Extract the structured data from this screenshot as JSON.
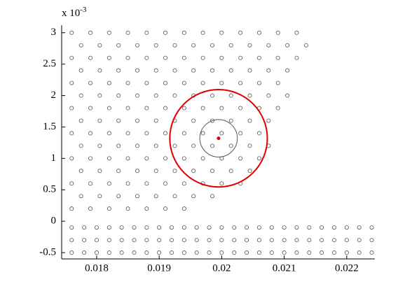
{
  "chart_data": {
    "type": "scatter",
    "marker": "circle",
    "marker_color": "#555555",
    "grid": false,
    "xlim": [
      0.01744,
      0.02245
    ],
    "xticks": [
      0.018,
      0.019,
      0.02,
      0.021,
      0.022
    ],
    "ylim": [
      -0.6,
      3.12
    ],
    "yticks": [
      -0.5,
      0,
      0.5,
      1,
      1.5,
      2,
      2.5,
      3
    ],
    "y_multiplier": {
      "base": "x 10",
      "exponent": "-3"
    },
    "x": [
      0.0176,
      0.0179,
      0.0182,
      0.0185,
      0.0188,
      0.0191,
      0.0194,
      0.0197,
      0.02,
      0.0203,
      0.0206,
      0.0209,
      0.0212,
      0.01775,
      0.01805,
      0.01835,
      0.01865,
      0.01895,
      0.01925,
      0.01955,
      0.01985,
      0.02015,
      0.02045,
      0.02075,
      0.02105,
      0.02135,
      0.0176,
      0.0179,
      0.0182,
      0.0185,
      0.0188,
      0.0191,
      0.0194,
      0.0197,
      0.02,
      0.0203,
      0.0206,
      0.0209,
      0.0212,
      0.01775,
      0.01805,
      0.01835,
      0.01865,
      0.01895,
      0.01925,
      0.01955,
      0.01985,
      0.02015,
      0.02045,
      0.02075,
      0.02105,
      0.0176,
      0.0179,
      0.0182,
      0.0185,
      0.0188,
      0.0191,
      0.0194,
      0.0197,
      0.02,
      0.0203,
      0.0206,
      0.0209,
      0.01775,
      0.01805,
      0.01835,
      0.01865,
      0.01895,
      0.01925,
      0.01955,
      0.01985,
      0.02015,
      0.02045,
      0.02075,
      0.02105,
      0.0176,
      0.0179,
      0.0182,
      0.0185,
      0.0188,
      0.0191,
      0.0194,
      0.0197,
      0.02,
      0.0203,
      0.0206,
      0.0209,
      0.01775,
      0.01805,
      0.01835,
      0.01865,
      0.01895,
      0.01925,
      0.01955,
      0.01985,
      0.02015,
      0.02045,
      0.02075,
      0.0176,
      0.0179,
      0.0182,
      0.0185,
      0.0188,
      0.0191,
      0.0194,
      0.0197,
      0.02,
      0.0203,
      0.0206,
      0.01775,
      0.01805,
      0.01835,
      0.01865,
      0.01895,
      0.01925,
      0.01955,
      0.01985,
      0.02015,
      0.02045,
      0.02075,
      0.0176,
      0.0179,
      0.0182,
      0.0185,
      0.0188,
      0.0191,
      0.0194,
      0.0197,
      0.02,
      0.0203,
      0.0206,
      0.01775,
      0.01805,
      0.01835,
      0.01865,
      0.01895,
      0.01925,
      0.01955,
      0.01985,
      0.02015,
      0.02045,
      0.0176,
      0.0179,
      0.0182,
      0.0185,
      0.0188,
      0.0191,
      0.0194,
      0.0197,
      0.02,
      0.0203,
      0.01775,
      0.01805,
      0.01835,
      0.01865,
      0.01895,
      0.01925,
      0.01955,
      0.01985,
      0.0176,
      0.0179,
      0.0182,
      0.0185,
      0.0188,
      0.0191,
      0.0194,
      0.0176,
      0.0178,
      0.018,
      0.0182,
      0.0184,
      0.0186,
      0.0188,
      0.019,
      0.0192,
      0.0194,
      0.0196,
      0.0198,
      0.02,
      0.0202,
      0.0204,
      0.0206,
      0.0208,
      0.021,
      0.0212,
      0.0214,
      0.0216,
      0.0218,
      0.022,
      0.0222,
      0.0224,
      0.0176,
      0.0178,
      0.018,
      0.0182,
      0.0184,
      0.0186,
      0.0188,
      0.019,
      0.0192,
      0.0194,
      0.0196,
      0.0198,
      0.02,
      0.0202,
      0.0204,
      0.0206,
      0.0208,
      0.021,
      0.0212,
      0.0214,
      0.0216,
      0.0218,
      0.022,
      0.0222,
      0.0224,
      0.0176,
      0.0178,
      0.018,
      0.0182,
      0.0184,
      0.0186,
      0.0188,
      0.019,
      0.0192,
      0.0194,
      0.0196,
      0.0198,
      0.02,
      0.0202,
      0.0204,
      0.0206,
      0.0208,
      0.021,
      0.0212,
      0.0214,
      0.0216,
      0.0218,
      0.022,
      0.0222,
      0.0224
    ],
    "values": [
      3,
      3,
      3,
      3,
      3,
      3,
      3,
      3,
      3,
      3,
      3,
      3,
      3,
      2.8,
      2.8,
      2.8,
      2.8,
      2.8,
      2.8,
      2.8,
      2.8,
      2.8,
      2.8,
      2.8,
      2.8,
      2.8,
      2.6,
      2.6,
      2.6,
      2.6,
      2.6,
      2.6,
      2.6,
      2.6,
      2.6,
      2.6,
      2.6,
      2.6,
      2.6,
      2.4,
      2.4,
      2.4,
      2.4,
      2.4,
      2.4,
      2.4,
      2.4,
      2.4,
      2.4,
      2.4,
      2.4,
      2.2,
      2.2,
      2.2,
      2.2,
      2.2,
      2.2,
      2.2,
      2.2,
      2.2,
      2.2,
      2.2,
      2.2,
      2,
      2,
      2,
      2,
      2,
      2,
      2,
      2,
      2,
      2,
      2,
      2,
      1.8,
      1.8,
      1.8,
      1.8,
      1.8,
      1.8,
      1.8,
      1.8,
      1.8,
      1.8,
      1.8,
      1.8,
      1.6,
      1.6,
      1.6,
      1.6,
      1.6,
      1.6,
      1.6,
      1.6,
      1.6,
      1.6,
      1.6,
      1.4,
      1.4,
      1.4,
      1.4,
      1.4,
      1.4,
      1.4,
      1.4,
      1.4,
      1.4,
      1.4,
      1.2,
      1.2,
      1.2,
      1.2,
      1.2,
      1.2,
      1.2,
      1.2,
      1.2,
      1.2,
      1.2,
      1,
      1,
      1,
      1,
      1,
      1,
      1,
      1,
      1,
      1,
      1,
      0.8,
      0.8,
      0.8,
      0.8,
      0.8,
      0.8,
      0.8,
      0.8,
      0.8,
      0.8,
      0.6,
      0.6,
      0.6,
      0.6,
      0.6,
      0.6,
      0.6,
      0.6,
      0.6,
      0.6,
      0.4,
      0.4,
      0.4,
      0.4,
      0.4,
      0.4,
      0.4,
      0.4,
      0.2,
      0.2,
      0.2,
      0.2,
      0.2,
      0.2,
      0.2,
      -0.1,
      -0.1,
      -0.1,
      -0.1,
      -0.1,
      -0.1,
      -0.1,
      -0.1,
      -0.1,
      -0.1,
      -0.1,
      -0.1,
      -0.1,
      -0.1,
      -0.1,
      -0.1,
      -0.1,
      -0.1,
      -0.1,
      -0.1,
      -0.1,
      -0.1,
      -0.1,
      -0.1,
      -0.1,
      -0.3,
      -0.3,
      -0.3,
      -0.3,
      -0.3,
      -0.3,
      -0.3,
      -0.3,
      -0.3,
      -0.3,
      -0.3,
      -0.3,
      -0.3,
      -0.3,
      -0.3,
      -0.3,
      -0.3,
      -0.3,
      -0.3,
      -0.3,
      -0.3,
      -0.3,
      -0.3,
      -0.3,
      -0.3,
      -0.5,
      -0.5,
      -0.5,
      -0.5,
      -0.5,
      -0.5,
      -0.5,
      -0.5,
      -0.5,
      -0.5,
      -0.5,
      -0.5,
      -0.5,
      -0.5,
      -0.5,
      -0.5,
      -0.5,
      -0.5,
      -0.5,
      -0.5,
      -0.5,
      -0.5,
      -0.5,
      -0.5,
      -0.5
    ],
    "circles": [
      {
        "cx": 0.01995,
        "cy": 1.32,
        "r": 0.00078,
        "color": "#e00000",
        "width": 2
      },
      {
        "cx": 0.01995,
        "cy": 1.32,
        "r": 0.0003,
        "color": "#555555",
        "width": 1
      }
    ],
    "highlight": {
      "x": 0.01995,
      "y": 1.32,
      "color": "#e00000"
    }
  }
}
